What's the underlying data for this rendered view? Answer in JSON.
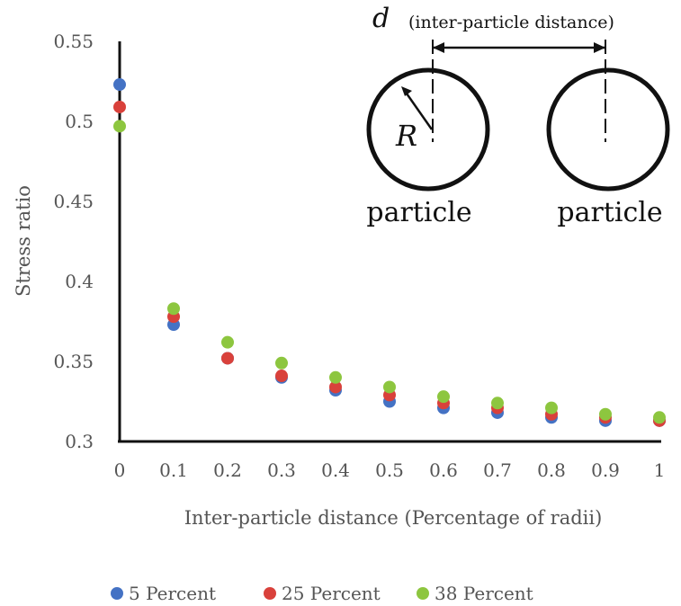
{
  "chart_data": {
    "type": "scatter",
    "title": "",
    "xlabel": "Inter-particle distance (Percentage of radii)",
    "ylabel": "Stress ratio",
    "x": [
      0,
      0.1,
      0.2,
      0.3,
      0.4,
      0.5,
      0.6,
      0.7,
      0.8,
      0.9,
      1
    ],
    "x_tick_labels": [
      "0",
      "0.1",
      "0.2",
      "0.3",
      "0.4",
      "0.5",
      "0.6",
      "0.7",
      "0.8",
      "0.9",
      "1"
    ],
    "y_tick_labels": [
      "0.3",
      "0.35",
      "0.4",
      "0.45",
      "0.5",
      "0.55"
    ],
    "xlim": [
      0,
      1
    ],
    "ylim": [
      0.3,
      0.55
    ],
    "grid": false,
    "legend_position": "bottom",
    "series": [
      {
        "name": "5 Percent",
        "color": "#4472C4",
        "values": [
          0.523,
          0.373,
          0.352,
          0.34,
          0.332,
          0.325,
          0.321,
          0.318,
          0.315,
          0.313,
          0.313
        ]
      },
      {
        "name": "25 Percent",
        "color": "#D9413B",
        "values": [
          0.509,
          0.378,
          0.352,
          0.341,
          0.334,
          0.329,
          0.324,
          0.321,
          0.317,
          0.315,
          0.313
        ]
      },
      {
        "name": "38 Percent",
        "color": "#8DC63F",
        "values": [
          0.497,
          0.383,
          0.362,
          0.349,
          0.34,
          0.334,
          0.328,
          0.324,
          0.321,
          0.317,
          0.315
        ]
      }
    ],
    "inset": {
      "d_symbol": "d",
      "d_caption": "(inter-particle distance)",
      "radius_symbol": "R",
      "particle_labels": [
        "particle",
        "particle"
      ]
    }
  }
}
